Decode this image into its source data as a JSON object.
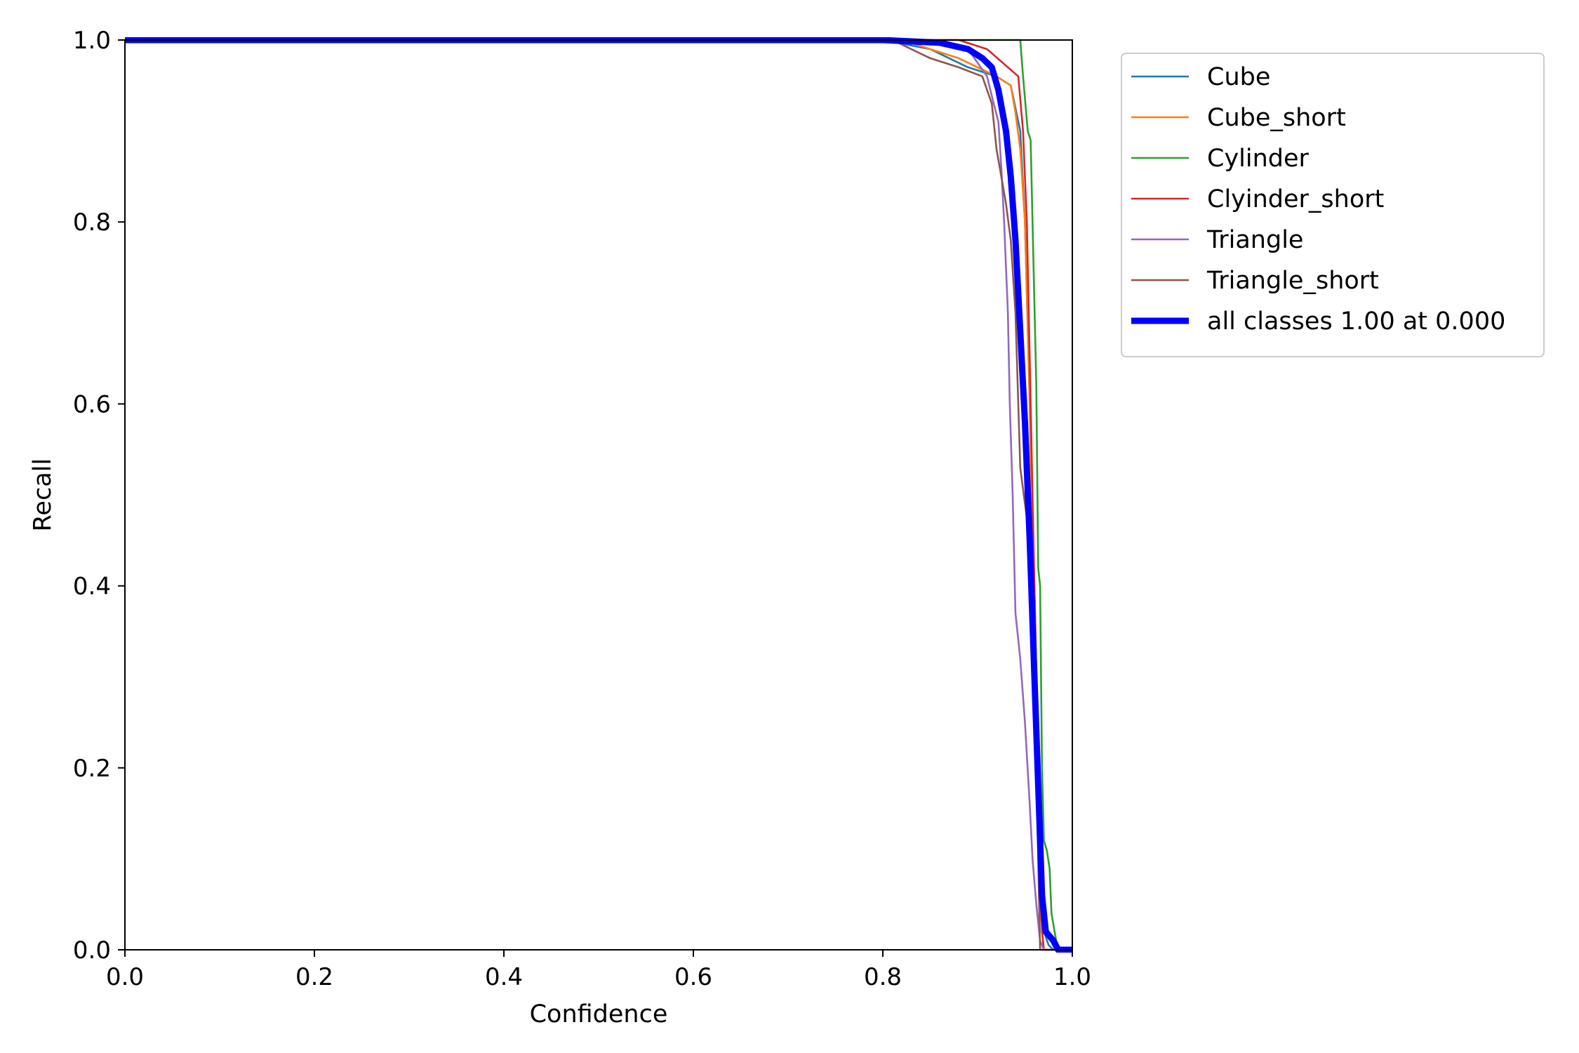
{
  "chart_data": {
    "type": "line",
    "title": "",
    "xlabel": "Confidence",
    "ylabel": "Recall",
    "xlim": [
      0,
      1
    ],
    "ylim": [
      0,
      1
    ],
    "xticks": [
      "0.0",
      "0.2",
      "0.4",
      "0.6",
      "0.8",
      "1.0"
    ],
    "yticks": [
      "0.0",
      "0.2",
      "0.4",
      "0.6",
      "0.8",
      "1.0"
    ],
    "grid": false,
    "legend_position": "outside-right-top",
    "series": [
      {
        "name": "Cube",
        "color": "#1f77b4",
        "x": [
          0,
          0.8,
          0.85,
          0.89,
          0.92,
          0.935,
          0.945,
          0.95,
          0.955,
          0.96,
          0.963,
          0.966,
          0.968,
          0.97,
          0.975,
          0.98,
          1.0
        ],
        "y": [
          1.0,
          1.0,
          0.99,
          0.97,
          0.96,
          0.95,
          0.9,
          0.8,
          0.6,
          0.4,
          0.25,
          0.12,
          0.05,
          0.02,
          0.005,
          0.0,
          0.0
        ]
      },
      {
        "name": "Cube_short",
        "color": "#ff7f0e",
        "x": [
          0,
          0.82,
          0.85,
          0.88,
          0.9,
          0.92,
          0.935,
          0.94,
          0.945,
          0.95,
          0.955,
          0.958,
          0.962,
          0.966,
          0.97,
          0.975,
          1.0
        ],
        "y": [
          1.0,
          1.0,
          0.99,
          0.98,
          0.97,
          0.96,
          0.95,
          0.92,
          0.88,
          0.8,
          0.6,
          0.37,
          0.2,
          0.05,
          0.0,
          0.0,
          0.0
        ]
      },
      {
        "name": "Cylinder",
        "color": "#2ca02c",
        "x": [
          0,
          0.93,
          0.945,
          0.948,
          0.953,
          0.956,
          0.958,
          0.962,
          0.964,
          0.966,
          0.968,
          0.97,
          0.973,
          0.976,
          0.978,
          0.983,
          0.987,
          1.0
        ],
        "y": [
          1.0,
          1.0,
          1.0,
          0.96,
          0.9,
          0.89,
          0.8,
          0.62,
          0.42,
          0.4,
          0.2,
          0.12,
          0.11,
          0.09,
          0.04,
          0.01,
          0.0,
          0.0
        ]
      },
      {
        "name": "Clyinder_short",
        "color": "#d62728",
        "x": [
          0,
          0.88,
          0.91,
          0.943,
          0.948,
          0.952,
          0.955,
          0.958,
          0.962,
          0.965,
          0.968,
          0.97,
          0.975,
          1.0
        ],
        "y": [
          1.0,
          1.0,
          0.99,
          0.96,
          0.9,
          0.8,
          0.65,
          0.5,
          0.3,
          0.1,
          0.02,
          0.0,
          0.0,
          0.0
        ]
      },
      {
        "name": "Triangle",
        "color": "#9467bd",
        "x": [
          0,
          0.86,
          0.89,
          0.91,
          0.917,
          0.922,
          0.925,
          0.928,
          0.932,
          0.934,
          0.937,
          0.94,
          0.945,
          0.95,
          0.955,
          0.958,
          0.962,
          0.966,
          0.97,
          1.0
        ],
        "y": [
          1.0,
          1.0,
          0.99,
          0.96,
          0.93,
          0.91,
          0.86,
          0.8,
          0.7,
          0.6,
          0.5,
          0.37,
          0.32,
          0.25,
          0.16,
          0.1,
          0.05,
          0.01,
          0.0,
          0.0
        ]
      },
      {
        "name": "Triangle_short",
        "color": "#8c564b",
        "x": [
          0,
          0.81,
          0.85,
          0.88,
          0.905,
          0.915,
          0.92,
          0.925,
          0.93,
          0.935,
          0.94,
          0.945,
          0.955,
          0.96,
          0.963,
          0.966,
          0.97,
          1.0
        ],
        "y": [
          1.0,
          1.0,
          0.98,
          0.97,
          0.96,
          0.93,
          0.88,
          0.85,
          0.82,
          0.78,
          0.7,
          0.53,
          0.45,
          0.3,
          0.15,
          0.0,
          0.0,
          0.0
        ]
      },
      {
        "name": "all classes 1.00 at 0.000",
        "color": "#0000ff",
        "bold": true,
        "x": [
          0,
          0.8,
          0.86,
          0.89,
          0.905,
          0.915,
          0.922,
          0.93,
          0.935,
          0.94,
          0.945,
          0.95,
          0.955,
          0.96,
          0.965,
          0.968,
          0.972,
          0.98,
          0.985,
          1.0
        ],
        "y": [
          1.0,
          1.0,
          0.997,
          0.99,
          0.98,
          0.97,
          0.945,
          0.9,
          0.85,
          0.78,
          0.68,
          0.58,
          0.45,
          0.3,
          0.15,
          0.06,
          0.02,
          0.01,
          0.0,
          0.0
        ]
      }
    ]
  }
}
